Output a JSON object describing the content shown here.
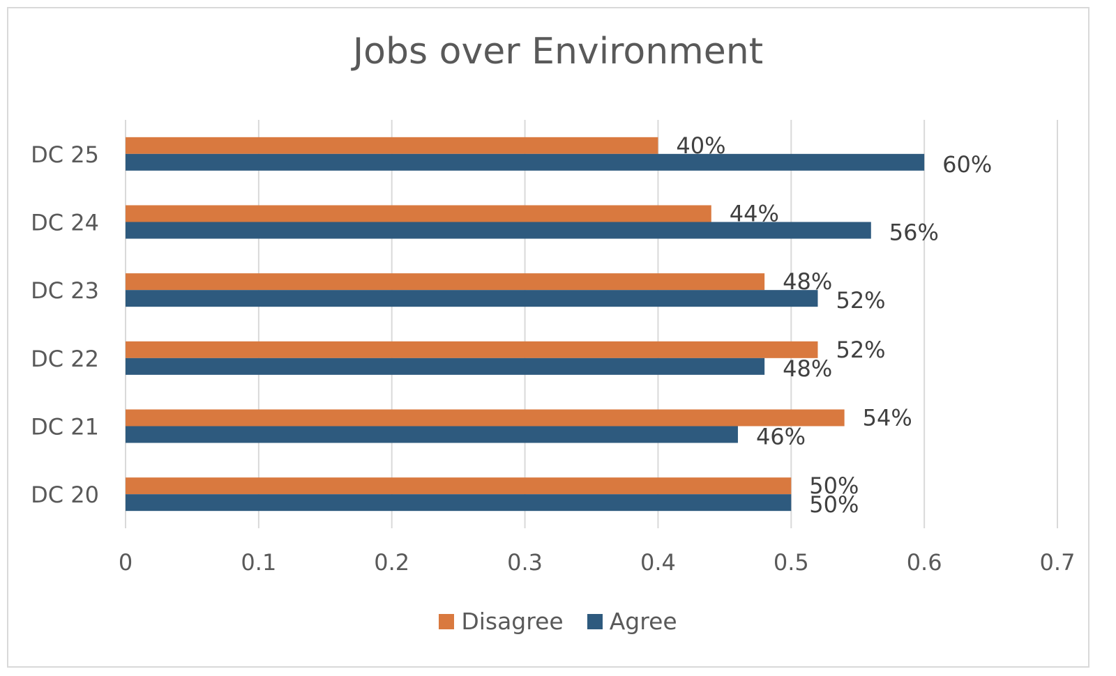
{
  "chart_data": {
    "type": "bar",
    "orientation": "horizontal",
    "title": "Jobs over Environment",
    "xlabel": "",
    "ylabel": "",
    "categories": [
      "DC 25",
      "DC 24",
      "DC 23",
      "DC 22",
      "DC 21",
      "DC 20"
    ],
    "series": [
      {
        "name": "Disagree",
        "color": "#d9793f",
        "values": [
          0.4,
          0.44,
          0.48,
          0.52,
          0.54,
          0.5
        ],
        "labels": [
          "40%",
          "44%",
          "48%",
          "52%",
          "54%",
          "50%"
        ]
      },
      {
        "name": "Agree",
        "color": "#2e5a7e",
        "values": [
          0.6,
          0.56,
          0.52,
          0.48,
          0.46,
          0.5
        ],
        "labels": [
          "60%",
          "56%",
          "52%",
          "48%",
          "46%",
          "50%"
        ]
      }
    ],
    "xlim": [
      0,
      0.7
    ],
    "xticks": [
      "0",
      "0.1",
      "0.2",
      "0.3",
      "0.4",
      "0.5",
      "0.6",
      "0.7"
    ],
    "grid": true,
    "legend_position": "bottom"
  }
}
